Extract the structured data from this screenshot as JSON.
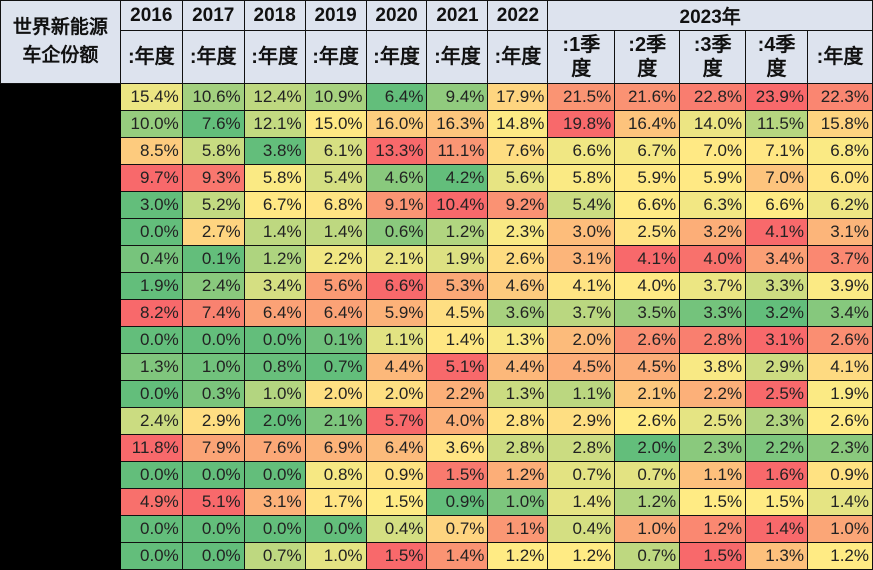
{
  "chart_data": {
    "type": "heatmap",
    "title": "世界新能源车企份额",
    "color_scale": {
      "low": "#63be7b",
      "mid": "#ffeb84",
      "high": "#f8696b",
      "scope": "per-row"
    },
    "header": {
      "corner_line1": "世界新能源",
      "corner_line2": "车企份额",
      "years": [
        "2016",
        "2017",
        "2018",
        "2019",
        "2020",
        "2021",
        "2022"
      ],
      "year_2023": "2023年",
      "annual": ":年度",
      "quarters": [
        [
          ":1季",
          "度"
        ],
        [
          ":2季",
          "度"
        ],
        [
          ":3季",
          "度"
        ],
        [
          ":4季",
          "度"
        ]
      ]
    },
    "columns": [
      "2016年度",
      "2017年度",
      "2018年度",
      "2019年度",
      "2020年度",
      "2021年度",
      "2022年度",
      "2023Q1",
      "2023Q2",
      "2023Q3",
      "2023Q4",
      "2023年度"
    ],
    "rows": [
      [
        "15.4%",
        "10.6%",
        "12.4%",
        "10.9%",
        "6.4%",
        "9.4%",
        "17.9%",
        "21.5%",
        "21.6%",
        "22.8%",
        "23.9%",
        "22.3%"
      ],
      [
        "10.0%",
        "7.6%",
        "12.1%",
        "15.0%",
        "16.0%",
        "16.3%",
        "14.8%",
        "19.8%",
        "16.4%",
        "14.0%",
        "11.5%",
        "15.8%"
      ],
      [
        "8.5%",
        "5.8%",
        "3.8%",
        "6.1%",
        "13.3%",
        "11.1%",
        "7.6%",
        "6.6%",
        "6.7%",
        "7.0%",
        "7.1%",
        "6.8%"
      ],
      [
        "9.7%",
        "9.3%",
        "5.8%",
        "5.4%",
        "4.6%",
        "4.2%",
        "5.6%",
        "5.8%",
        "5.9%",
        "5.9%",
        "7.0%",
        "6.0%"
      ],
      [
        "3.0%",
        "5.2%",
        "6.7%",
        "6.8%",
        "9.1%",
        "10.4%",
        "9.2%",
        "5.4%",
        "6.6%",
        "6.3%",
        "6.6%",
        "6.2%"
      ],
      [
        "0.0%",
        "2.7%",
        "1.4%",
        "1.4%",
        "0.6%",
        "1.2%",
        "2.3%",
        "3.0%",
        "2.5%",
        "3.2%",
        "4.1%",
        "3.1%"
      ],
      [
        "0.4%",
        "0.1%",
        "1.2%",
        "2.2%",
        "2.1%",
        "1.9%",
        "2.6%",
        "3.1%",
        "4.1%",
        "4.0%",
        "3.4%",
        "3.7%"
      ],
      [
        "1.9%",
        "2.4%",
        "3.4%",
        "5.6%",
        "6.6%",
        "5.3%",
        "4.6%",
        "4.1%",
        "4.0%",
        "3.7%",
        "3.3%",
        "3.9%"
      ],
      [
        "8.2%",
        "7.4%",
        "6.4%",
        "6.4%",
        "5.9%",
        "4.5%",
        "3.6%",
        "3.7%",
        "3.5%",
        "3.3%",
        "3.2%",
        "3.4%"
      ],
      [
        "0.0%",
        "0.0%",
        "0.0%",
        "0.1%",
        "1.1%",
        "1.4%",
        "1.3%",
        "2.0%",
        "2.6%",
        "2.8%",
        "3.1%",
        "2.6%"
      ],
      [
        "1.3%",
        "1.0%",
        "0.8%",
        "0.7%",
        "4.4%",
        "5.1%",
        "4.4%",
        "4.5%",
        "4.5%",
        "3.8%",
        "2.9%",
        "4.1%"
      ],
      [
        "0.0%",
        "0.3%",
        "1.0%",
        "2.0%",
        "2.0%",
        "2.2%",
        "1.3%",
        "1.1%",
        "2.1%",
        "2.2%",
        "2.5%",
        "1.9%"
      ],
      [
        "2.4%",
        "2.9%",
        "2.0%",
        "2.1%",
        "5.7%",
        "4.0%",
        "2.8%",
        "2.9%",
        "2.6%",
        "2.5%",
        "2.3%",
        "2.6%"
      ],
      [
        "11.8%",
        "7.9%",
        "7.6%",
        "6.9%",
        "6.4%",
        "3.6%",
        "2.8%",
        "2.8%",
        "2.0%",
        "2.3%",
        "2.2%",
        "2.3%"
      ],
      [
        "0.0%",
        "0.0%",
        "0.0%",
        "0.8%",
        "0.9%",
        "1.5%",
        "1.2%",
        "0.7%",
        "0.7%",
        "1.1%",
        "1.6%",
        "0.9%"
      ],
      [
        "4.9%",
        "5.1%",
        "3.1%",
        "1.7%",
        "1.5%",
        "0.9%",
        "1.0%",
        "1.4%",
        "1.2%",
        "1.5%",
        "1.5%",
        "1.4%"
      ],
      [
        "0.0%",
        "0.0%",
        "0.0%",
        "0.0%",
        "0.4%",
        "0.7%",
        "1.1%",
        "0.4%",
        "1.0%",
        "1.2%",
        "1.4%",
        "1.0%"
      ],
      [
        "0.0%",
        "0.0%",
        "0.7%",
        "1.0%",
        "1.5%",
        "1.4%",
        "1.2%",
        "1.2%",
        "0.7%",
        "1.5%",
        "1.3%",
        "1.2%"
      ]
    ]
  }
}
